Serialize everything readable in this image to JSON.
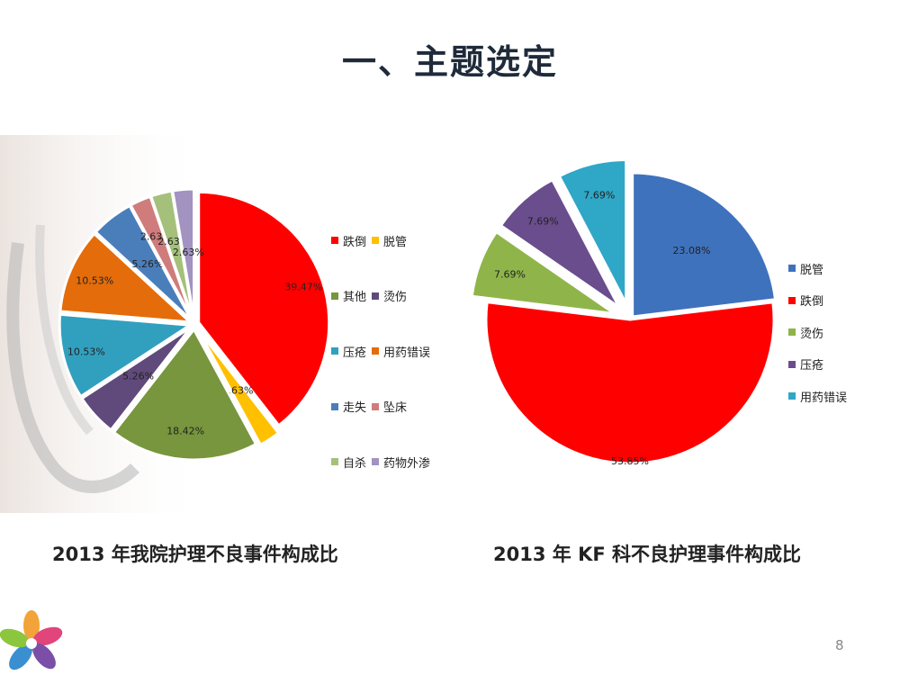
{
  "slide": {
    "title": "一、主题选定",
    "page_number": "8"
  },
  "colors": {
    "red": "#ff0000",
    "yellow": "#ffc000",
    "green": "#77963d",
    "purple": "#604a7b",
    "teal": "#31a0be",
    "orange": "#e46c0a",
    "blue": "#4a7ebb",
    "rose": "#d07c7c",
    "lightgreen": "#a5c07a",
    "lavender": "#a293c0",
    "dark_blue": "#3f72bc"
  },
  "chart_data": [
    {
      "type": "pie",
      "title": "2013 年我院护理不良事件构成比",
      "slices": [
        {
          "label": "跌倒",
          "value": 39.47,
          "value_label": "39.47%",
          "color": "#ff0000"
        },
        {
          "label": "脱管",
          "value": 2.63,
          "value_label": "2.63%",
          "color": "#ffc000"
        },
        {
          "label": "其他",
          "value": 18.42,
          "value_label": "18.42%",
          "color": "#77963d"
        },
        {
          "label": "烫伤",
          "value": 5.26,
          "value_label": "5.26%",
          "color": "#604a7b"
        },
        {
          "label": "压疮",
          "value": 10.53,
          "value_label": "10.53%",
          "color": "#31a0be"
        },
        {
          "label": "用药错误",
          "value": 10.53,
          "value_label": "10.53%",
          "color": "#e46c0a"
        },
        {
          "label": "走失",
          "value": 5.26,
          "value_label": "5.26%",
          "color": "#4a7ebb"
        },
        {
          "label": "坠床",
          "value": 2.63,
          "value_label": "2.63%",
          "color": "#d07c7c"
        },
        {
          "label": "自杀",
          "value": 2.63,
          "value_label": "2.63%",
          "color": "#a5c07a"
        },
        {
          "label": "药物外渗",
          "value": 2.63,
          "value_label": "2.63%",
          "color": "#a293c0"
        }
      ],
      "legend_position": "right",
      "legend_pairs": [
        [
          "跌倒",
          "脱管"
        ],
        [
          "其他",
          "烫伤"
        ],
        [
          "压疮",
          "用药错误"
        ],
        [
          "走失",
          "坠床"
        ],
        [
          "自杀",
          "药物外渗"
        ]
      ]
    },
    {
      "type": "pie",
      "title": "2013 年 KF 科不良护理事件构成比",
      "slices": [
        {
          "label": "脱管",
          "value": 23.08,
          "value_label": "23.08%",
          "color": "#3f72bc"
        },
        {
          "label": "跌倒",
          "value": 53.85,
          "value_label": "53.85%",
          "color": "#ff0000"
        },
        {
          "label": "烫伤",
          "value": 7.69,
          "value_label": "7.69%",
          "color": "#8fb54a"
        },
        {
          "label": "压疮",
          "value": 7.69,
          "value_label": "7.69%",
          "color": "#6a4d8c"
        },
        {
          "label": "用药错误",
          "value": 7.69,
          "value_label": "7.69%",
          "color": "#2fa7c7"
        }
      ],
      "legend_position": "right"
    }
  ]
}
